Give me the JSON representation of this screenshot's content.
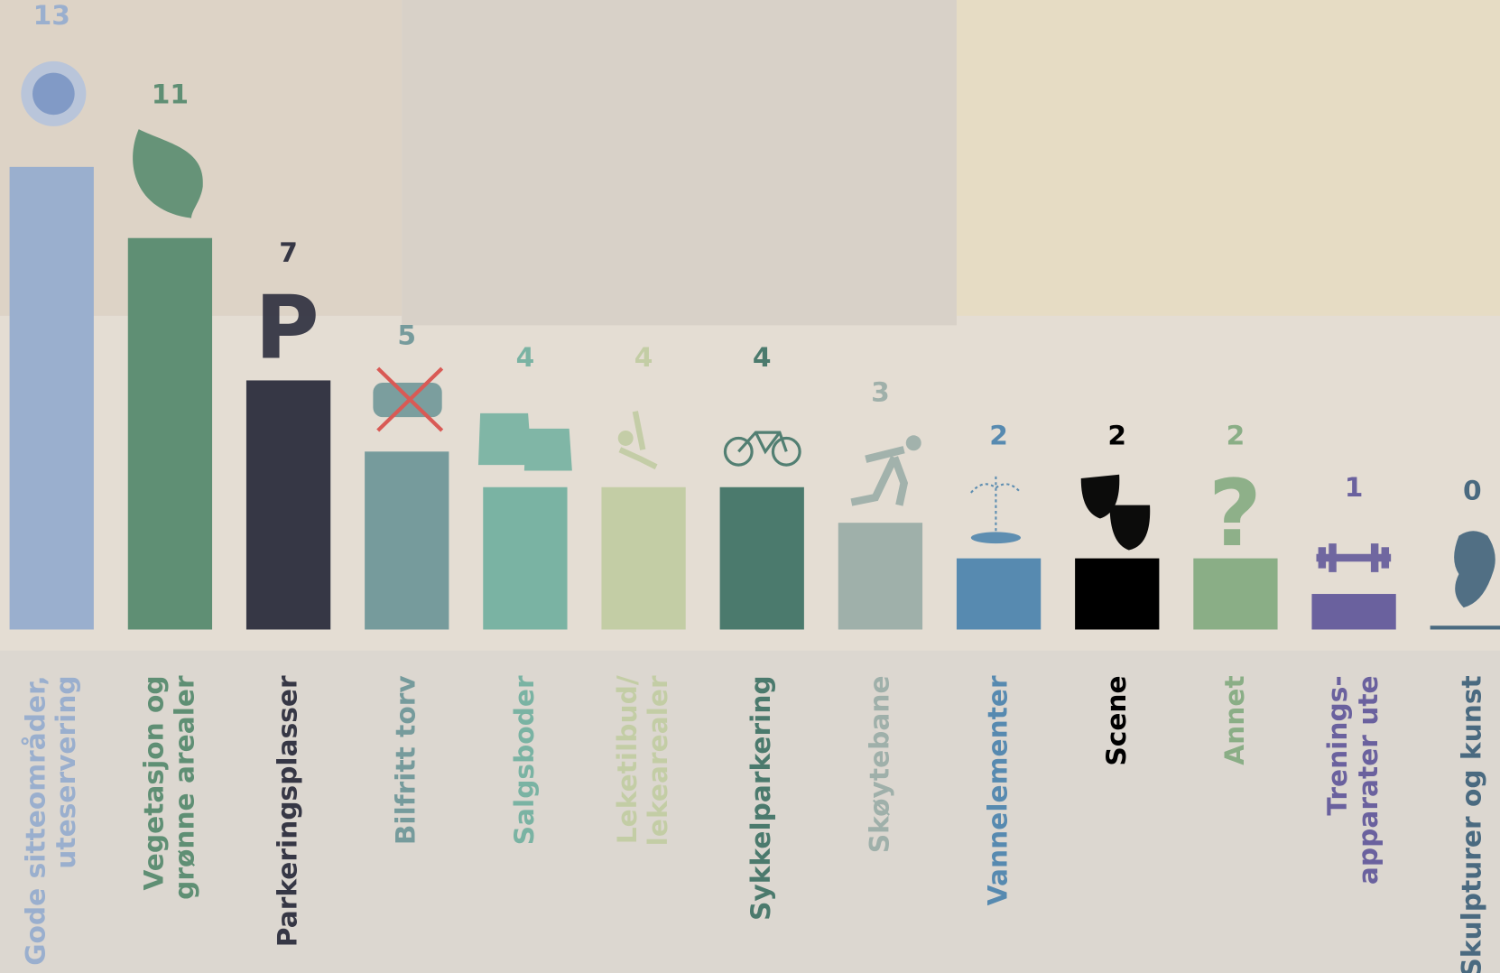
{
  "chart_data": {
    "type": "bar",
    "categories": [
      "Gode sitteområder,\nuteservering",
      "Vegetasjon og\ngrønne arealer",
      "Parkeringsplasser",
      "Bilfritt torv",
      "Salgsboder",
      "Leketilbud/\nlekearealer",
      "Sykkelparkering",
      "Skøytebane",
      "Vannelementer",
      "Scene",
      "Annet",
      "Trenings-\napparater ute",
      "Skulpturer og kunst"
    ],
    "values": [
      13,
      11,
      7,
      5,
      4,
      4,
      4,
      3,
      2,
      2,
      2,
      1,
      0
    ],
    "colors": [
      "#9aafce",
      "#5f8f74",
      "#363745",
      "#769b9c",
      "#7ab3a3",
      "#c3cda5",
      "#4b7a6d",
      "#9fb0aa",
      "#578ab0",
      "#000000",
      "#8aae86",
      "#6a619e",
      "#4a6a80"
    ]
  }
}
